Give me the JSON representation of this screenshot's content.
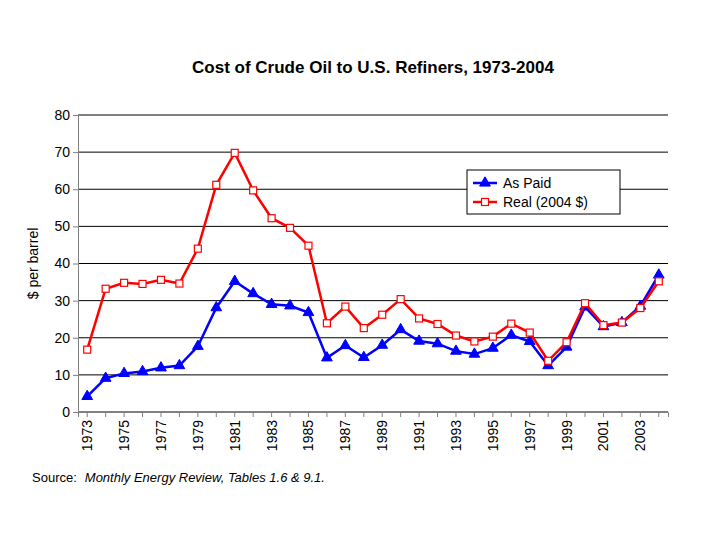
{
  "chart_data": {
    "type": "line",
    "title": "Cost of Crude Oil to U.S. Refiners, 1973-2004",
    "y_label": "$ per barrel",
    "annotations": [
      "Source:",
      "Monthly Energy Review, Tables 1.6 & 9.1."
    ],
    "categories": [
      "1973",
      null,
      "1975",
      null,
      "1977",
      null,
      "1979",
      null,
      "1981",
      null,
      "1983",
      null,
      "1985",
      null,
      "1987",
      null,
      "1989",
      null,
      "1991",
      null,
      "1993",
      null,
      "1995",
      null,
      "1997",
      null,
      "1999",
      null,
      "2001",
      null,
      "2003",
      null
    ],
    "series": [
      {
        "name": "As Paid",
        "color": "#0000ff",
        "marker": "triangle",
        "values": [
          4.2,
          9.1,
          10.4,
          10.9,
          11.9,
          12.5,
          17.7,
          28.1,
          35.2,
          31.9,
          29.0,
          28.6,
          26.8,
          14.6,
          17.9,
          14.7,
          18.0,
          22.2,
          19.1,
          18.4,
          16.4,
          15.6,
          17.2,
          20.7,
          19.0,
          12.5,
          17.5,
          28.3,
          23.0,
          24.1,
          28.5,
          36.9
        ]
      },
      {
        "name": "Real (2004 $)",
        "color": "#ff0000",
        "marker": "square",
        "values": [
          16.8,
          33.2,
          34.8,
          34.5,
          35.6,
          34.6,
          44.0,
          61.2,
          69.8,
          59.7,
          52.2,
          49.6,
          44.8,
          23.9,
          28.4,
          22.6,
          26.2,
          30.4,
          25.2,
          23.7,
          20.6,
          19.0,
          20.3,
          23.8,
          21.4,
          13.8,
          18.8,
          29.3,
          23.4,
          24.1,
          28.0,
          35.2
        ]
      }
    ],
    "ylim": [
      0,
      80
    ],
    "yticks": [
      0,
      10,
      20,
      30,
      40,
      50,
      60,
      70,
      80
    ],
    "grid": true,
    "legend": "upper right"
  }
}
